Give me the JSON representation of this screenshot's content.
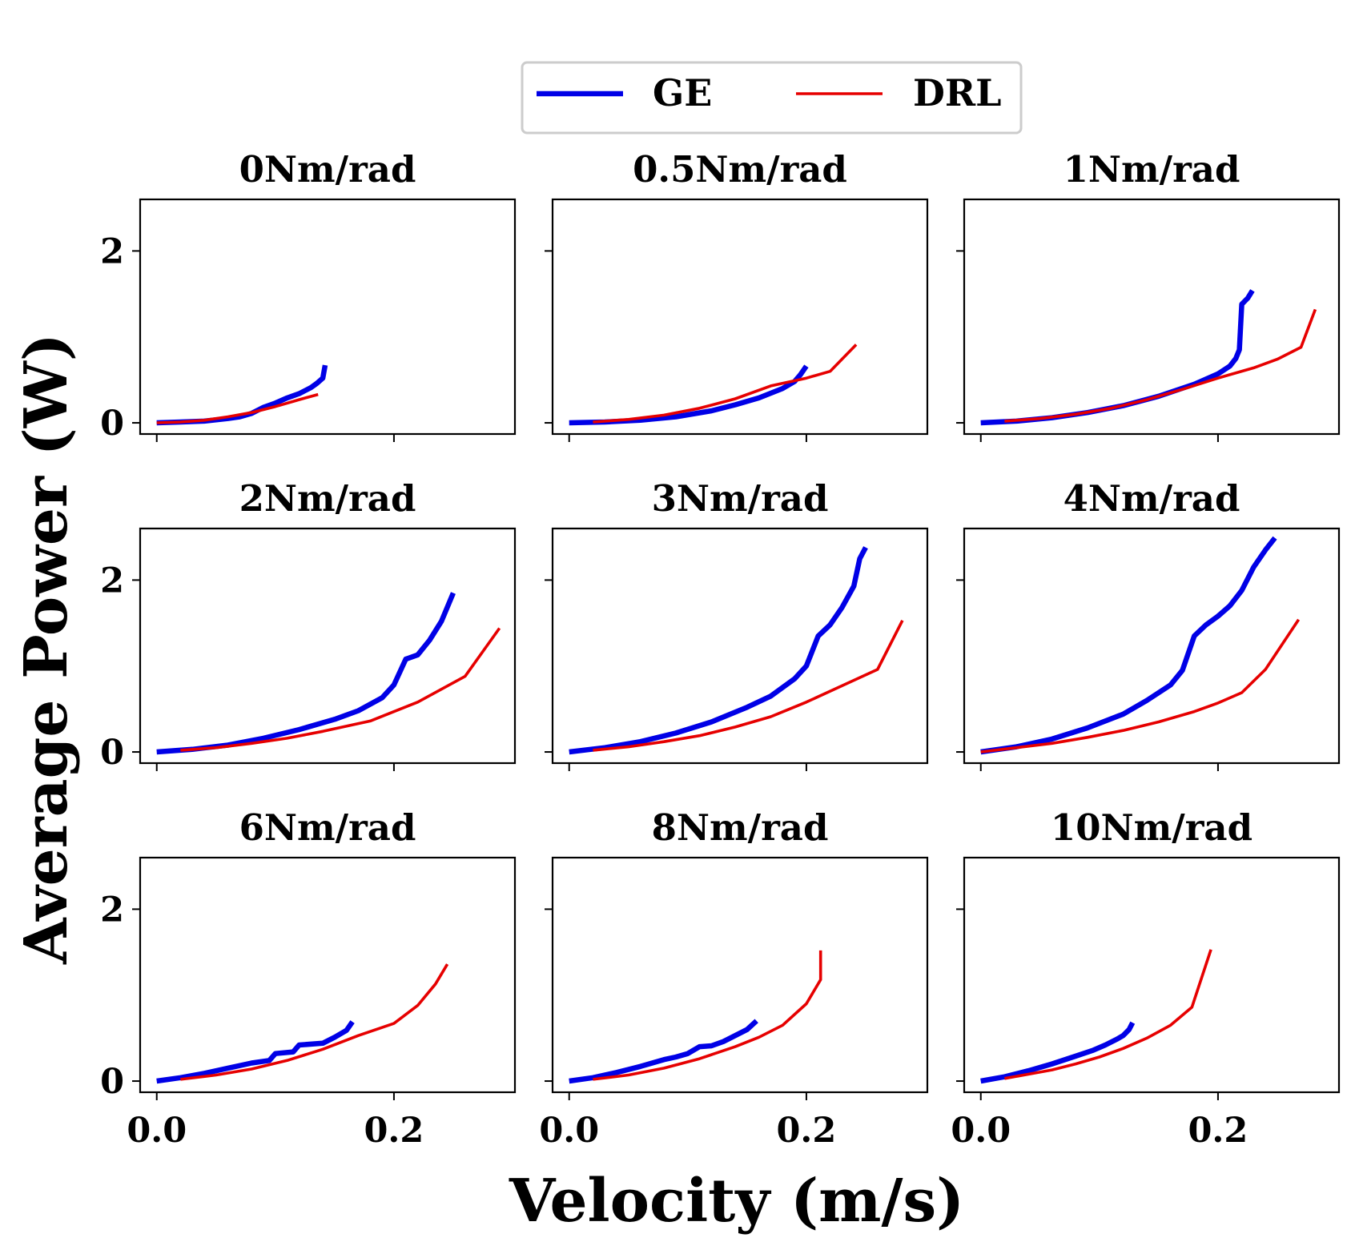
{
  "figure": {
    "xlabel": "Velocity (m/s)",
    "ylabel": "Average Power (W)"
  },
  "legend": {
    "placement": "top-center",
    "entries": [
      {
        "label": "GE",
        "color": "#0000e6"
      },
      {
        "label": "DRL",
        "color": "#e60000"
      }
    ]
  },
  "chart_data": [
    {
      "type": "line",
      "title": "0Nm/rad",
      "xlim": [
        -0.014,
        0.302
      ],
      "ylim": [
        -0.13,
        2.6
      ],
      "xticks": [
        "0.0",
        "0.2"
      ],
      "yticks": [
        "0",
        "2"
      ],
      "series": [
        {
          "name": "GE",
          "x": [
            0.0,
            0.02,
            0.04,
            0.06,
            0.07,
            0.08,
            0.09,
            0.1,
            0.11,
            0.12,
            0.13,
            0.135,
            0.14,
            0.142
          ],
          "y": [
            0.0,
            0.01,
            0.02,
            0.05,
            0.07,
            0.11,
            0.18,
            0.23,
            0.29,
            0.34,
            0.41,
            0.46,
            0.52,
            0.67
          ]
        },
        {
          "name": "DRL",
          "x": [
            0.0,
            0.02,
            0.04,
            0.06,
            0.08,
            0.1,
            0.12,
            0.136
          ],
          "y": [
            0.0,
            0.01,
            0.03,
            0.07,
            0.12,
            0.19,
            0.27,
            0.33
          ]
        }
      ]
    },
    {
      "type": "line",
      "title": "0.5Nm/rad",
      "xlim": [
        -0.014,
        0.302
      ],
      "ylim": [
        -0.13,
        2.6
      ],
      "xticks": [
        "0.0",
        "0.2"
      ],
      "yticks": [
        "0",
        "2"
      ],
      "series": [
        {
          "name": "GE",
          "x": [
            0.0,
            0.03,
            0.06,
            0.09,
            0.12,
            0.14,
            0.16,
            0.18,
            0.19,
            0.195,
            0.2
          ],
          "y": [
            0.0,
            0.01,
            0.03,
            0.07,
            0.14,
            0.21,
            0.29,
            0.4,
            0.48,
            0.56,
            0.66
          ]
        },
        {
          "name": "DRL",
          "x": [
            0.02,
            0.05,
            0.08,
            0.11,
            0.14,
            0.17,
            0.2,
            0.22,
            0.242
          ],
          "y": [
            0.01,
            0.04,
            0.09,
            0.17,
            0.28,
            0.43,
            0.52,
            0.6,
            0.91
          ]
        }
      ]
    },
    {
      "type": "line",
      "title": "1Nm/rad",
      "xlim": [
        -0.014,
        0.302
      ],
      "ylim": [
        -0.13,
        2.6
      ],
      "xticks": [
        "0.0",
        "0.2"
      ],
      "yticks": [
        "0",
        "2"
      ],
      "series": [
        {
          "name": "GE",
          "x": [
            0.0,
            0.03,
            0.06,
            0.09,
            0.12,
            0.15,
            0.18,
            0.2,
            0.21,
            0.215,
            0.218,
            0.22,
            0.225,
            0.229
          ],
          "y": [
            0.0,
            0.02,
            0.06,
            0.12,
            0.2,
            0.31,
            0.45,
            0.57,
            0.66,
            0.75,
            0.85,
            1.38,
            1.45,
            1.54
          ]
        },
        {
          "name": "DRL",
          "x": [
            0.02,
            0.05,
            0.08,
            0.11,
            0.14,
            0.17,
            0.2,
            0.23,
            0.25,
            0.27,
            0.282
          ],
          "y": [
            0.02,
            0.05,
            0.1,
            0.17,
            0.27,
            0.39,
            0.52,
            0.64,
            0.74,
            0.88,
            1.32
          ]
        }
      ]
    },
    {
      "type": "line",
      "title": "2Nm/rad",
      "xlim": [
        -0.014,
        0.302
      ],
      "ylim": [
        -0.13,
        2.6
      ],
      "xticks": [
        "0.0",
        "0.2"
      ],
      "yticks": [
        "0",
        "2"
      ],
      "series": [
        {
          "name": "GE",
          "x": [
            0.0,
            0.03,
            0.06,
            0.09,
            0.12,
            0.15,
            0.17,
            0.19,
            0.2,
            0.21,
            0.22,
            0.23,
            0.24,
            0.25
          ],
          "y": [
            0.0,
            0.03,
            0.08,
            0.16,
            0.26,
            0.38,
            0.48,
            0.63,
            0.78,
            1.08,
            1.13,
            1.3,
            1.52,
            1.85
          ]
        },
        {
          "name": "DRL",
          "x": [
            0.02,
            0.05,
            0.08,
            0.11,
            0.14,
            0.18,
            0.22,
            0.26,
            0.289
          ],
          "y": [
            0.02,
            0.05,
            0.1,
            0.16,
            0.24,
            0.36,
            0.58,
            0.88,
            1.44
          ]
        }
      ]
    },
    {
      "type": "line",
      "title": "3Nm/rad",
      "xlim": [
        -0.014,
        0.302
      ],
      "ylim": [
        -0.13,
        2.6
      ],
      "xticks": [
        "0.0",
        "0.2"
      ],
      "yticks": [
        "0",
        "2"
      ],
      "series": [
        {
          "name": "GE",
          "x": [
            0.0,
            0.03,
            0.06,
            0.09,
            0.12,
            0.15,
            0.17,
            0.19,
            0.2,
            0.21,
            0.22,
            0.23,
            0.24,
            0.245,
            0.25
          ],
          "y": [
            0.0,
            0.05,
            0.12,
            0.22,
            0.35,
            0.52,
            0.65,
            0.85,
            1.0,
            1.35,
            1.48,
            1.68,
            1.93,
            2.25,
            2.38
          ]
        },
        {
          "name": "DRL",
          "x": [
            0.02,
            0.05,
            0.08,
            0.11,
            0.14,
            0.17,
            0.2,
            0.23,
            0.26,
            0.281
          ],
          "y": [
            0.02,
            0.06,
            0.12,
            0.19,
            0.29,
            0.41,
            0.58,
            0.77,
            0.96,
            1.53
          ]
        }
      ]
    },
    {
      "type": "line",
      "title": "4Nm/rad",
      "xlim": [
        -0.014,
        0.302
      ],
      "ylim": [
        -0.13,
        2.6
      ],
      "xticks": [
        "0.0",
        "0.2"
      ],
      "yticks": [
        "0",
        "2"
      ],
      "series": [
        {
          "name": "GE",
          "x": [
            0.0,
            0.03,
            0.06,
            0.09,
            0.12,
            0.14,
            0.16,
            0.17,
            0.18,
            0.19,
            0.2,
            0.21,
            0.22,
            0.23,
            0.24,
            0.248
          ],
          "y": [
            0.0,
            0.06,
            0.15,
            0.28,
            0.44,
            0.6,
            0.78,
            0.95,
            1.35,
            1.48,
            1.58,
            1.7,
            1.88,
            2.15,
            2.35,
            2.49
          ]
        },
        {
          "name": "DRL",
          "x": [
            0.0,
            0.03,
            0.06,
            0.09,
            0.12,
            0.15,
            0.18,
            0.2,
            0.22,
            0.24,
            0.268
          ],
          "y": [
            0.0,
            0.05,
            0.1,
            0.17,
            0.25,
            0.35,
            0.47,
            0.57,
            0.69,
            0.96,
            1.54
          ]
        }
      ]
    },
    {
      "type": "line",
      "title": "6Nm/rad",
      "xlim": [
        -0.014,
        0.302
      ],
      "ylim": [
        -0.13,
        2.6
      ],
      "xticks": [
        "0.0",
        "0.2"
      ],
      "yticks": [
        "0",
        "2"
      ],
      "series": [
        {
          "name": "GE",
          "x": [
            0.0,
            0.02,
            0.04,
            0.06,
            0.08,
            0.095,
            0.1,
            0.115,
            0.12,
            0.14,
            0.15,
            0.16,
            0.165
          ],
          "y": [
            0.0,
            0.04,
            0.09,
            0.15,
            0.21,
            0.24,
            0.32,
            0.34,
            0.42,
            0.44,
            0.51,
            0.59,
            0.69
          ]
        },
        {
          "name": "DRL",
          "x": [
            0.02,
            0.05,
            0.08,
            0.11,
            0.14,
            0.17,
            0.2,
            0.22,
            0.235,
            0.245
          ],
          "y": [
            0.02,
            0.07,
            0.14,
            0.24,
            0.37,
            0.53,
            0.67,
            0.88,
            1.13,
            1.36
          ]
        }
      ]
    },
    {
      "type": "line",
      "title": "8Nm/rad",
      "xlim": [
        -0.014,
        0.302
      ],
      "ylim": [
        -0.13,
        2.6
      ],
      "xticks": [
        "0.0",
        "0.2"
      ],
      "yticks": [
        "0",
        "2"
      ],
      "series": [
        {
          "name": "GE",
          "x": [
            0.0,
            0.02,
            0.04,
            0.06,
            0.08,
            0.09,
            0.1,
            0.11,
            0.12,
            0.13,
            0.14,
            0.15,
            0.158
          ],
          "y": [
            0.0,
            0.04,
            0.1,
            0.17,
            0.25,
            0.28,
            0.32,
            0.4,
            0.41,
            0.46,
            0.53,
            0.6,
            0.7
          ]
        },
        {
          "name": "DRL",
          "x": [
            0.02,
            0.05,
            0.08,
            0.11,
            0.14,
            0.16,
            0.18,
            0.2,
            0.212,
            0.212
          ],
          "y": [
            0.02,
            0.07,
            0.15,
            0.26,
            0.4,
            0.51,
            0.65,
            0.9,
            1.18,
            1.52
          ]
        }
      ]
    },
    {
      "type": "line",
      "title": "10Nm/rad",
      "xlim": [
        -0.014,
        0.302
      ],
      "ylim": [
        -0.13,
        2.6
      ],
      "xticks": [
        "0.0",
        "0.2"
      ],
      "yticks": [
        "0",
        "2"
      ],
      "series": [
        {
          "name": "GE",
          "x": [
            0.0,
            0.02,
            0.04,
            0.06,
            0.08,
            0.095,
            0.105,
            0.115,
            0.12,
            0.125,
            0.128
          ],
          "y": [
            0.0,
            0.05,
            0.12,
            0.2,
            0.29,
            0.36,
            0.42,
            0.49,
            0.53,
            0.6,
            0.68
          ]
        },
        {
          "name": "DRL",
          "x": [
            0.02,
            0.04,
            0.06,
            0.08,
            0.1,
            0.12,
            0.14,
            0.16,
            0.178,
            0.194
          ],
          "y": [
            0.03,
            0.08,
            0.13,
            0.2,
            0.28,
            0.38,
            0.5,
            0.65,
            0.86,
            1.53
          ]
        }
      ]
    }
  ]
}
